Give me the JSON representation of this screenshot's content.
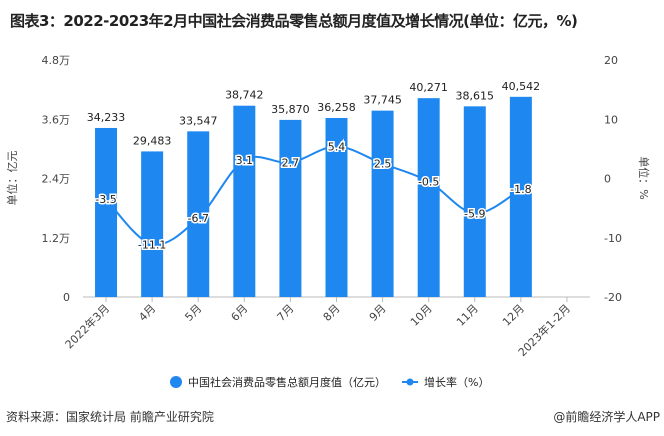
{
  "title": "图表3：2022-2023年2月中国社会消费品零售总额月度值及增长情况(单位：亿元，%)",
  "source": "资料来源：国家统计局 前瞻产业研究院",
  "credit": "@前瞻经济学人APP",
  "chart_data": {
    "type": "bar+line",
    "categories": [
      "2022年3月",
      "4月",
      "5月",
      "6月",
      "7月",
      "8月",
      "9月",
      "10月",
      "11月",
      "12月",
      "2023年1-2月"
    ],
    "series": [
      {
        "name": "中国社会消费品零售总额月度值（亿元）",
        "type": "bar",
        "axis": "left",
        "values": [
          34233,
          29483,
          33547,
          38742,
          35870,
          36258,
          37745,
          40271,
          38615,
          40542,
          null
        ],
        "labels": [
          "34,233",
          "29,483",
          "33,547",
          "38,742",
          "35,870",
          "36,258",
          "37,745",
          "40,271",
          "38,615",
          "40,542",
          ""
        ]
      },
      {
        "name": "增长率（%）",
        "type": "line",
        "axis": "right",
        "values": [
          -3.5,
          -11.1,
          -6.7,
          3.1,
          2.7,
          5.4,
          2.5,
          -0.5,
          -5.9,
          -1.8,
          null
        ]
      }
    ],
    "ylabel_left": "单位：亿元",
    "ylabel_right": "单位：%",
    "yticks_left": [
      "0",
      "1.2万",
      "2.4万",
      "3.6万",
      "4.8万"
    ],
    "ylim_left": [
      0,
      48000
    ],
    "yticks_right": [
      "-20",
      "-10",
      "0",
      "10",
      "20"
    ],
    "ylim_right": [
      -20,
      20
    ],
    "grid": false,
    "legend": "bottom",
    "colors": {
      "bar": "#1E88F0",
      "line": "#1E88F0"
    }
  }
}
